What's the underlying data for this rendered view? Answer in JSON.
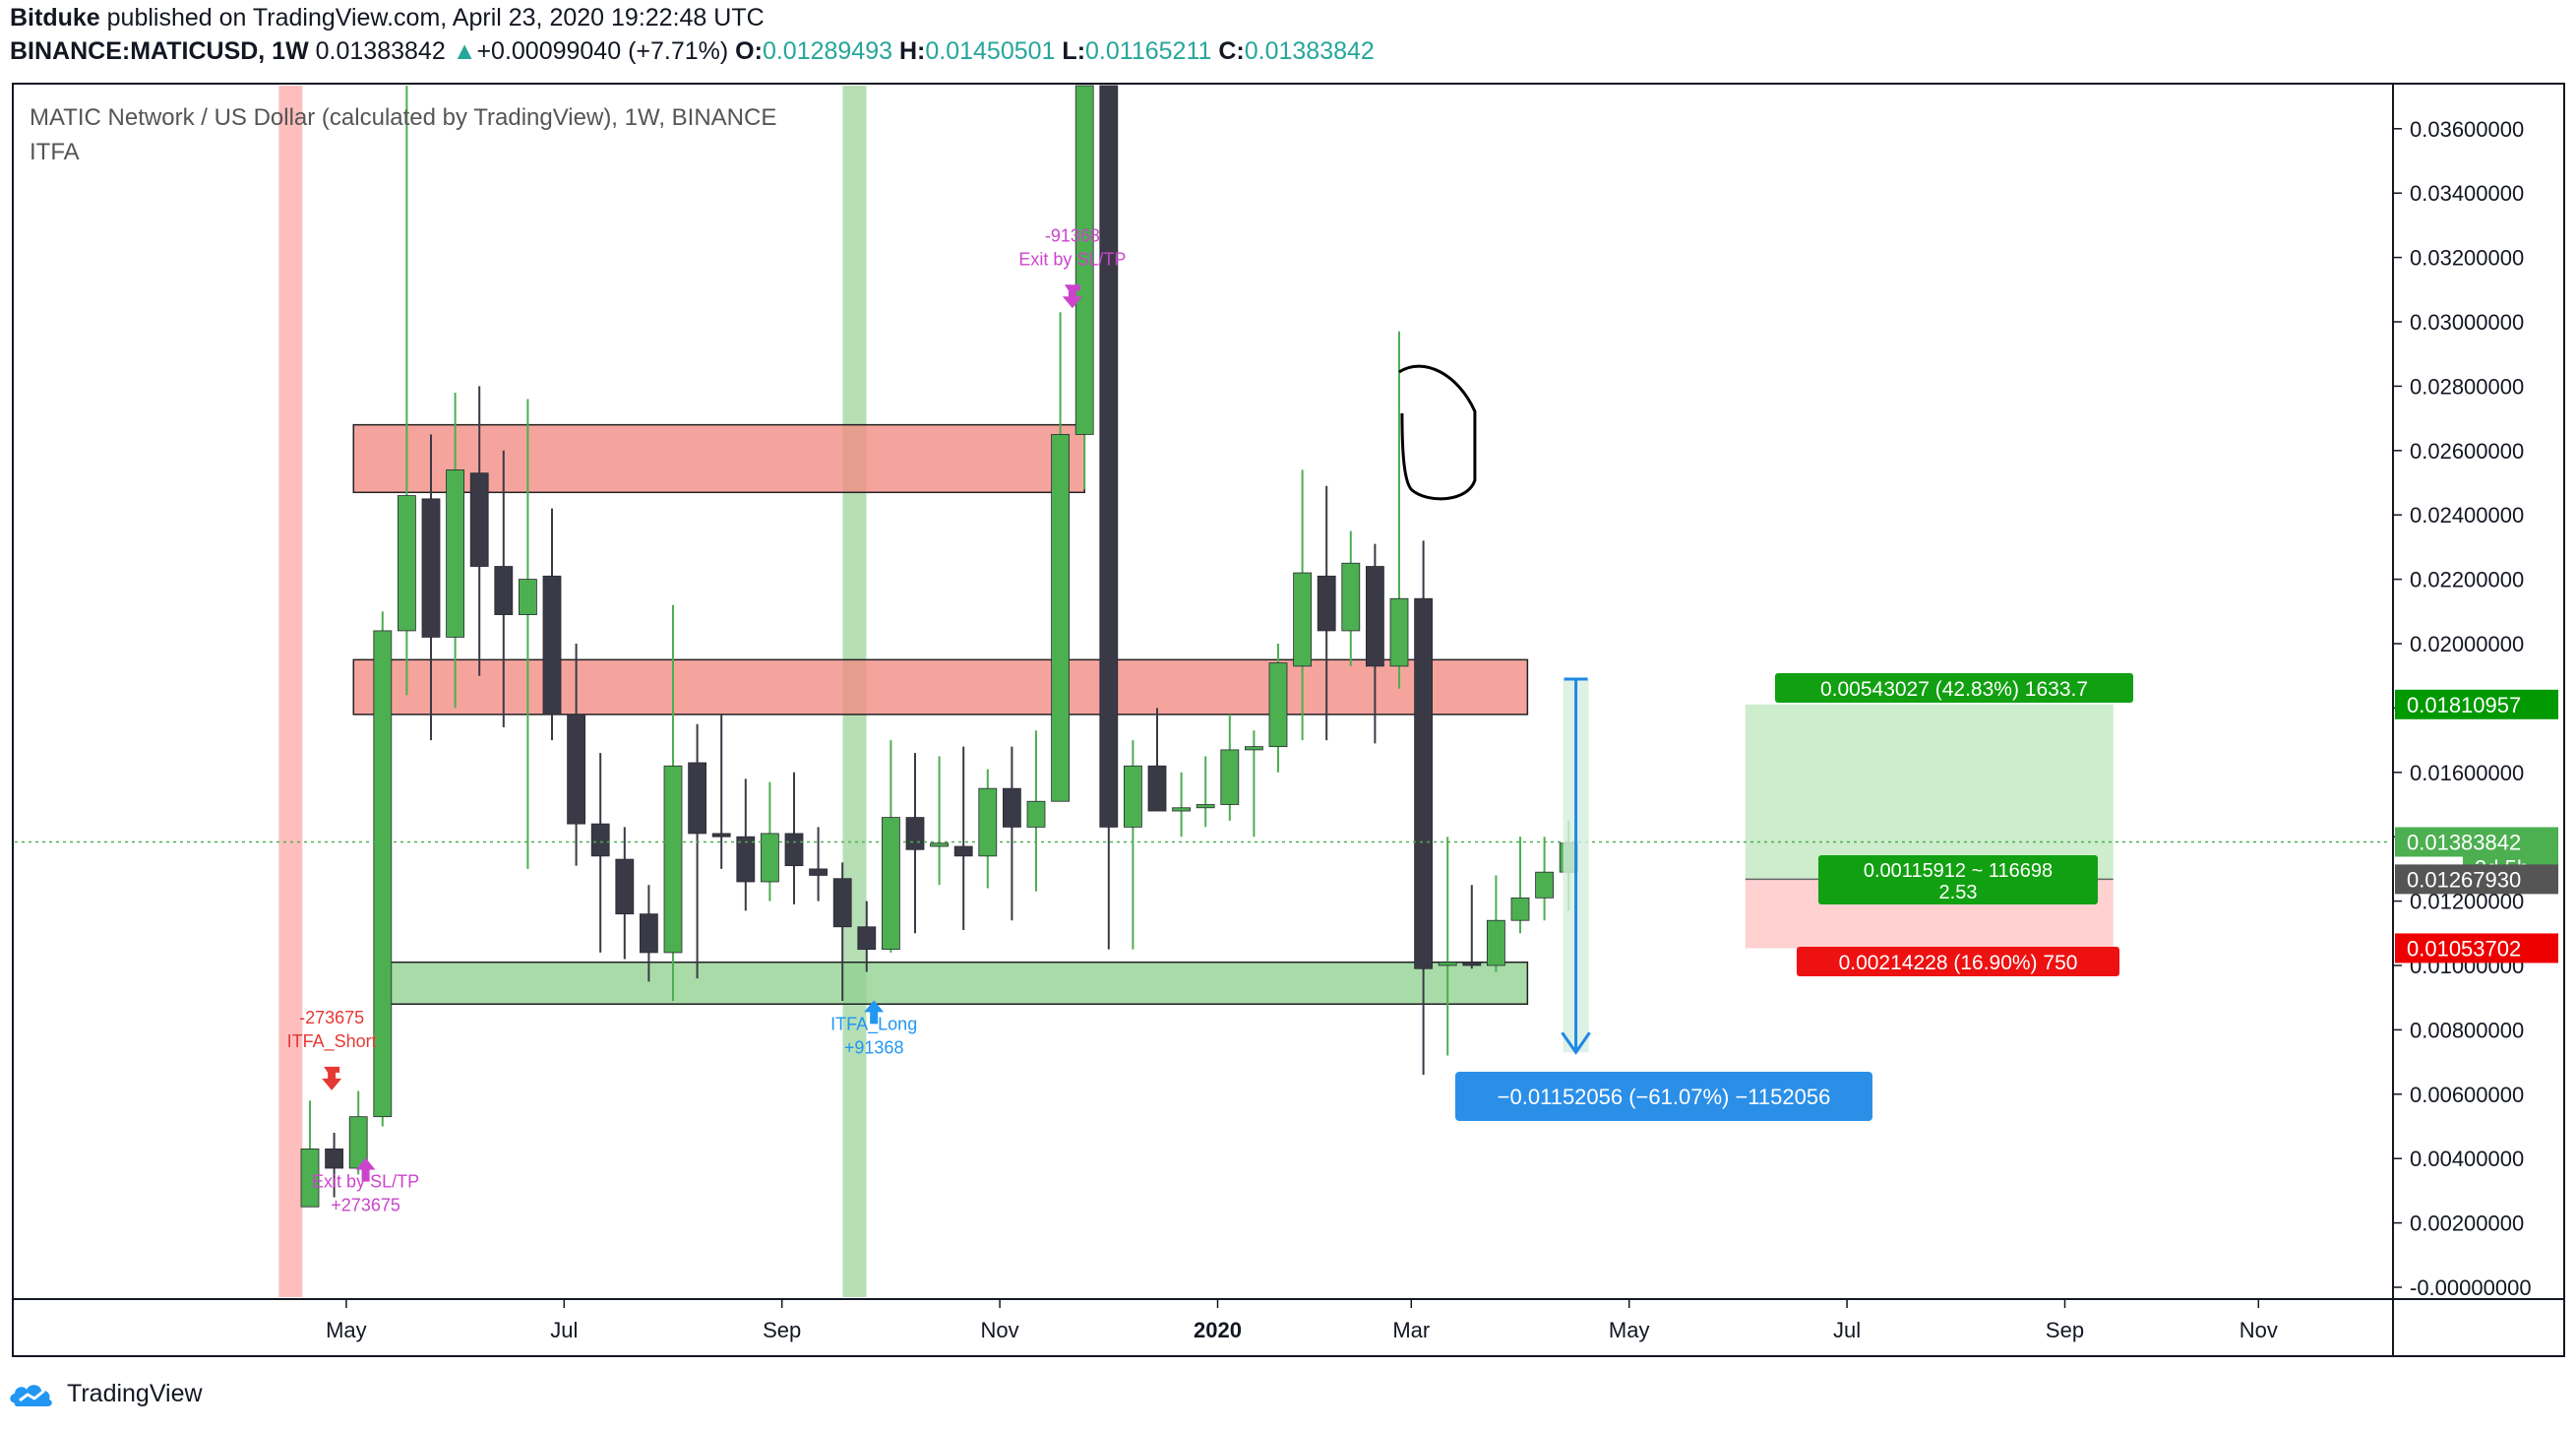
{
  "header": {
    "publisher_line": "Bitduke published on TradingView.com, April 23, 2020 19:22:48 UTC",
    "publisher": "Bitduke",
    "publisher_rest": " published on TradingView.com, April 23, 2020 19:22:48 UTC",
    "symbol": "BINANCE:MATICUSD, 1W",
    "price": "0.01383842",
    "change": "+0.00099040 (+7.71%)",
    "o_label": "O:",
    "o": "0.01289493",
    "h_label": "H:",
    "h": "0.01450501",
    "l_label": "L:",
    "l": "0.01165211",
    "c_label": "C:",
    "c": "0.01383842"
  },
  "chart_data": {
    "type": "candlestick",
    "title": "MATIC Network / US Dollar (calculated by TradingView), 1W, BINANCE",
    "indicator": "ITFA",
    "y_axis": {
      "ticks": [
        "0.03600000",
        "0.03400000",
        "0.03200000",
        "0.03000000",
        "0.02800000",
        "0.02600000",
        "0.02400000",
        "0.02200000",
        "0.02000000",
        "0.01800000",
        "0.01600000",
        "0.01400000",
        "0.01200000",
        "0.01000000",
        "0.00800000",
        "0.00600000",
        "0.00400000",
        "0.00200000",
        "-0.00000000"
      ],
      "range": [
        -0.0002,
        0.0373
      ]
    },
    "x_axis": {
      "ticks": [
        {
          "label": "May",
          "week": 1.5
        },
        {
          "label": "Jul",
          "week": 10.5
        },
        {
          "label": "Sep",
          "week": 19.5
        },
        {
          "label": "Nov",
          "week": 28.5
        },
        {
          "label": "2020",
          "week": 37.5,
          "bold": true
        },
        {
          "label": "Mar",
          "week": 45.5
        },
        {
          "label": "May",
          "week": 54.5
        },
        {
          "label": "Jul",
          "week": 63.5
        },
        {
          "label": "Sep",
          "week": 72.5
        },
        {
          "label": "Nov",
          "week": 80.5
        }
      ]
    },
    "candles": [
      [
        0.0025,
        0.0043,
        0.0025,
        0.0058
      ],
      [
        0.0043,
        0.0037,
        0.0028,
        0.0048
      ],
      [
        0.0037,
        0.0053,
        0.0035,
        0.0061
      ],
      [
        0.0053,
        0.0204,
        0.005,
        0.021
      ],
      [
        0.0204,
        0.0246,
        0.0184,
        0.0375
      ],
      [
        0.0245,
        0.0202,
        0.017,
        0.0265
      ],
      [
        0.0202,
        0.0254,
        0.018,
        0.0278
      ],
      [
        0.0253,
        0.0224,
        0.019,
        0.028
      ],
      [
        0.0224,
        0.0209,
        0.0174,
        0.026
      ],
      [
        0.0209,
        0.022,
        0.013,
        0.0276
      ],
      [
        0.0221,
        0.0178,
        0.017,
        0.0242
      ],
      [
        0.0178,
        0.0144,
        0.0131,
        0.02
      ],
      [
        0.0144,
        0.0134,
        0.0104,
        0.0166
      ],
      [
        0.0133,
        0.0116,
        0.0102,
        0.0143
      ],
      [
        0.0116,
        0.0104,
        0.0095,
        0.0125
      ],
      [
        0.0104,
        0.0162,
        0.0089,
        0.0212
      ],
      [
        0.0163,
        0.0141,
        0.0096,
        0.0175
      ],
      [
        0.0141,
        0.014,
        0.013,
        0.0178
      ],
      [
        0.014,
        0.0126,
        0.0117,
        0.0158
      ],
      [
        0.0126,
        0.0141,
        0.012,
        0.0157
      ],
      [
        0.0141,
        0.0131,
        0.0119,
        0.016
      ],
      [
        0.013,
        0.0128,
        0.012,
        0.0143
      ],
      [
        0.0127,
        0.0112,
        0.0089,
        0.0132
      ],
      [
        0.0112,
        0.0105,
        0.0098,
        0.012
      ],
      [
        0.0105,
        0.0146,
        0.0104,
        0.017
      ],
      [
        0.0146,
        0.0136,
        0.011,
        0.0166
      ],
      [
        0.0137,
        0.0138,
        0.0125,
        0.0165
      ],
      [
        0.0137,
        0.0134,
        0.0111,
        0.0168
      ],
      [
        0.0134,
        0.0155,
        0.0124,
        0.0161
      ],
      [
        0.0155,
        0.0143,
        0.0114,
        0.0168
      ],
      [
        0.0143,
        0.0151,
        0.0123,
        0.0173
      ],
      [
        0.0151,
        0.0265,
        0.0151,
        0.0303
      ],
      [
        0.0265,
        0.04,
        0.0248,
        0.042
      ],
      [
        0.04,
        0.0143,
        0.0105,
        0.042
      ],
      [
        0.0143,
        0.0162,
        0.0105,
        0.017
      ],
      [
        0.0162,
        0.0148,
        0.0148,
        0.018
      ],
      [
        0.0148,
        0.0149,
        0.014,
        0.016
      ],
      [
        0.0149,
        0.015,
        0.0143,
        0.0165
      ],
      [
        0.015,
        0.0167,
        0.0145,
        0.0178
      ],
      [
        0.0167,
        0.0168,
        0.014,
        0.0173
      ],
      [
        0.0168,
        0.0194,
        0.016,
        0.02
      ],
      [
        0.0193,
        0.0222,
        0.017,
        0.0254
      ],
      [
        0.0221,
        0.0204,
        0.017,
        0.0249
      ],
      [
        0.0204,
        0.0225,
        0.0193,
        0.0235
      ],
      [
        0.0224,
        0.0193,
        0.0169,
        0.0231
      ],
      [
        0.0193,
        0.0214,
        0.0186,
        0.0297
      ],
      [
        0.0214,
        0.0099,
        0.0066,
        0.0232
      ],
      [
        0.01,
        0.0101,
        0.0072,
        0.014
      ],
      [
        0.0101,
        0.01,
        0.0099,
        0.0125
      ],
      [
        0.01,
        0.0114,
        0.0098,
        0.0128
      ],
      [
        0.0114,
        0.0121,
        0.011,
        0.014
      ],
      [
        0.0121,
        0.0129,
        0.0114,
        0.014
      ],
      [
        0.0129,
        0.0138,
        0.0117,
        0.0145
      ]
    ],
    "zones": [
      {
        "name": "red-resistance-zone-upper",
        "type": "resistance",
        "from_week": 1.8,
        "to_week": 32.0,
        "low": 0.0247,
        "high": 0.0268
      },
      {
        "name": "red-resistance-zone-lower",
        "type": "resistance",
        "from_week": 1.8,
        "to_week": 50.3,
        "low": 0.0178,
        "high": 0.0195
      },
      {
        "name": "green-support-zone",
        "type": "support",
        "from_week": 3.3,
        "to_week": 50.3,
        "low": 0.0088,
        "high": 0.0101
      }
    ],
    "highlight_bands": [
      {
        "name": "red-highlight-band",
        "color": "#ffb3b3",
        "week": -0.8
      },
      {
        "name": "green-highlight-band",
        "color": "#a9d9a9",
        "week": 22.5
      }
    ],
    "last_price": 0.01383842,
    "measure": {
      "label": "−0.01152056 (−61.07%) −1152056",
      "week": 52.3,
      "from": 0.0189,
      "to": 0.0073
    },
    "position": {
      "entry": 0.0126793,
      "target": 0.01810957,
      "stop": 0.01053702,
      "from_week": 59.3,
      "to_week": 74.5,
      "target_label": "0.00543027 (42.83%) 1633.7",
      "mid_label_1": "0.00115912 ~ 116698",
      "mid_label_2": "2.53",
      "stop_label": "0.00214228 (16.90%) 750"
    },
    "price_tags": [
      {
        "value": "0.01810957",
        "price": 0.01810957,
        "color": "#009900"
      },
      {
        "value": "0.01383842",
        "price": 0.01383842,
        "color": "#4caf50"
      },
      {
        "value": "3d 5h",
        "price": 0.01305,
        "color": "#4caf50"
      },
      {
        "value": "0.01267930",
        "price": 0.0126793,
        "color": "#555555"
      },
      {
        "value": "0.01053702",
        "price": 0.01053702,
        "color": "#ee0000"
      }
    ],
    "signals": [
      {
        "name": "itfa-short-label",
        "week": 0.9,
        "price": 0.0082,
        "lines": [
          "-273675",
          "ITFA_Short"
        ],
        "color": "#e53935",
        "arrow": "down"
      },
      {
        "name": "exit-label-short",
        "week": 2.3,
        "price": 0.0031,
        "lines": [
          "Exit by SL/TP",
          "+273675"
        ],
        "color": "#cc44cc",
        "arrow": "up"
      },
      {
        "name": "itfa-long-label",
        "week": 23.3,
        "price": 0.008,
        "lines": [
          "ITFA_Long",
          "+91368"
        ],
        "color": "#2196f3",
        "arrow": "up"
      },
      {
        "name": "exit-label-long",
        "week": 31.5,
        "price": 0.0325,
        "lines": [
          "-91368",
          "Exit by SL/TP"
        ],
        "color": "#cc44cc",
        "arrow": "down"
      }
    ]
  },
  "footer": {
    "brand": "TradingView"
  }
}
